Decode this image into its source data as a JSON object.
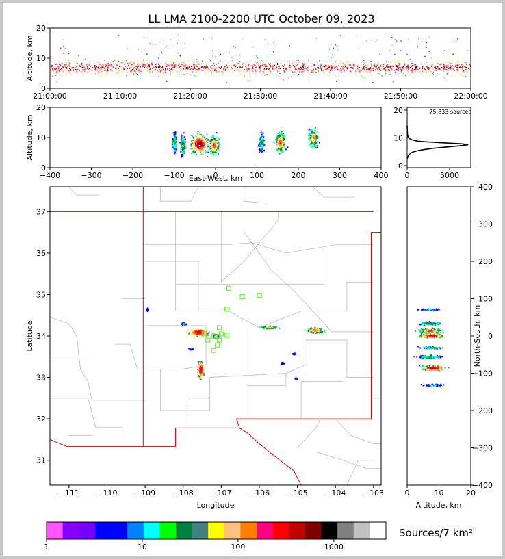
{
  "title": "LL LMA 2100-2200 UTC October 09, 2023",
  "colors": {
    "border": "#c0c0c0",
    "state_line": "#d40000",
    "county_line": "#bdbdbd",
    "station": "#66ee33"
  },
  "chart_data": [
    {
      "id": "time-height",
      "type": "scatter",
      "ylabel": "Altitude, km",
      "xlim": [
        "21:00:00",
        "22:00:00"
      ],
      "ylim": [
        0,
        20
      ],
      "x_ticks": [
        "21:00:00",
        "21:10:00",
        "21:20:00",
        "21:30:00",
        "21:40:00",
        "21:50:00",
        "22:00:00"
      ],
      "y_ticks": [
        "0",
        "10",
        "20"
      ],
      "source_density_band_km": [
        4,
        10
      ]
    },
    {
      "id": "ew-altitude",
      "type": "scatter",
      "xlabel": "East-West, km",
      "ylabel": "Altitude, km",
      "xlim": [
        -400,
        400
      ],
      "ylim": [
        0,
        20
      ],
      "x_ticks": [
        "−400",
        "−300",
        "−200",
        "−100",
        "0",
        "100",
        "200",
        "300",
        "400"
      ],
      "y_ticks": [
        "0",
        "10",
        "20"
      ],
      "clusters": [
        {
          "x": -100,
          "alt": 8.5,
          "width": 10,
          "intensity": 0.5
        },
        {
          "x": -80,
          "alt": 7.5,
          "width": 12,
          "intensity": 0.6
        },
        {
          "x": -40,
          "alt": 8,
          "width": 40,
          "intensity": 1.0
        },
        {
          "x": -5,
          "alt": 7.5,
          "width": 25,
          "intensity": 0.8
        },
        {
          "x": 110,
          "alt": 8.5,
          "width": 12,
          "intensity": 0.5
        },
        {
          "x": 155,
          "alt": 8.5,
          "width": 25,
          "intensity": 0.8
        },
        {
          "x": 235,
          "alt": 10,
          "width": 22,
          "intensity": 0.75
        }
      ]
    },
    {
      "id": "altitude-histogram",
      "type": "line",
      "annotation": "75,833 sources",
      "xlim": [
        0,
        7500
      ],
      "ylim": [
        0,
        20
      ],
      "x_ticks": [
        "0",
        "5000"
      ],
      "y_ticks": [
        "0",
        "10",
        "20"
      ],
      "x": [
        0,
        150,
        400,
        700,
        1200,
        2000,
        3000,
        4500,
        6000,
        7200,
        6500,
        4500,
        2500,
        1200,
        600,
        300,
        150,
        80,
        50,
        30,
        20,
        10,
        0
      ],
      "y": [
        3,
        4,
        4.8,
        5.2,
        5.6,
        6,
        6.4,
        6.8,
        7.2,
        7.6,
        7.9,
        8.2,
        8.5,
        8.8,
        9.2,
        9.6,
        10,
        10.5,
        11,
        11.5,
        12,
        13,
        14
      ]
    },
    {
      "id": "plan-view",
      "type": "scatter",
      "xlabel": "Longitude",
      "ylabel": "Latitude",
      "xlim": [
        -111.5,
        -102.8
      ],
      "ylim": [
        30.4,
        37.6
      ],
      "x_ticks": [
        "−111",
        "−110",
        "−109",
        "−108",
        "−107",
        "−106",
        "−105",
        "−104",
        "−103"
      ],
      "y_ticks": [
        "31",
        "32",
        "33",
        "34",
        "35",
        "36",
        "37"
      ],
      "stations": [
        {
          "lon": -106.8,
          "lat": 35.15
        },
        {
          "lon": -106.45,
          "lat": 34.95
        },
        {
          "lon": -106.0,
          "lat": 34.98
        },
        {
          "lon": -106.85,
          "lat": 34.65
        },
        {
          "lon": -107.05,
          "lat": 34.2
        },
        {
          "lon": -107.0,
          "lat": 34.05
        },
        {
          "lon": -107.2,
          "lat": 34.0
        },
        {
          "lon": -107.45,
          "lat": 34.05
        },
        {
          "lon": -107.35,
          "lat": 33.9
        },
        {
          "lon": -107.05,
          "lat": 33.9
        },
        {
          "lon": -107.1,
          "lat": 33.78
        },
        {
          "lon": -107.2,
          "lat": 33.65
        },
        {
          "lon": -106.85,
          "lat": 34.02
        }
      ],
      "clusters": [
        {
          "lon": -108.95,
          "lat": 34.65,
          "rx": 0.04,
          "ry": 0.06,
          "intensity": 0.3
        },
        {
          "lon": -108.0,
          "lat": 34.3,
          "rx": 0.08,
          "ry": 0.05,
          "intensity": 0.4
        },
        {
          "lon": -107.6,
          "lat": 34.1,
          "rx": 0.35,
          "ry": 0.12,
          "intensity": 0.9
        },
        {
          "lon": -107.15,
          "lat": 34.0,
          "rx": 0.12,
          "ry": 0.08,
          "intensity": 0.7
        },
        {
          "lon": -107.8,
          "lat": 33.7,
          "rx": 0.08,
          "ry": 0.04,
          "intensity": 0.35
        },
        {
          "lon": -107.55,
          "lat": 33.2,
          "rx": 0.12,
          "ry": 0.3,
          "intensity": 0.85
        },
        {
          "lon": -105.75,
          "lat": 34.22,
          "rx": 0.3,
          "ry": 0.05,
          "intensity": 0.7
        },
        {
          "lon": -104.55,
          "lat": 34.15,
          "rx": 0.3,
          "ry": 0.1,
          "intensity": 0.75
        },
        {
          "lon": -105.1,
          "lat": 33.58,
          "rx": 0.06,
          "ry": 0.03,
          "intensity": 0.3
        },
        {
          "lon": -105.4,
          "lat": 33.35,
          "rx": 0.06,
          "ry": 0.03,
          "intensity": 0.3
        },
        {
          "lon": -105.05,
          "lat": 32.98,
          "rx": 0.04,
          "ry": 0.03,
          "intensity": 0.3
        }
      ]
    },
    {
      "id": "ns-altitude",
      "type": "scatter",
      "xlabel": "Altitude, km",
      "ylabel": "North-South, km",
      "xlim": [
        0,
        20
      ],
      "ylim": [
        -400,
        400
      ],
      "x_ticks": [
        "0",
        "10",
        "20"
      ],
      "y_ticks": [
        "−400",
        "−300",
        "−200",
        "−100",
        "0",
        "100",
        "200",
        "300",
        "400"
      ],
      "clusters": [
        {
          "ns": 72,
          "alt": 7,
          "width": 4,
          "intensity": 0.4
        },
        {
          "ns": 35,
          "alt": 7,
          "width": 8,
          "intensity": 0.6
        },
        {
          "ns": 15,
          "alt": 7,
          "width": 12,
          "intensity": 0.8
        },
        {
          "ns": 2,
          "alt": 7.5,
          "width": 10,
          "intensity": 0.95
        },
        {
          "ns": -30,
          "alt": 7.5,
          "width": 6,
          "intensity": 0.5
        },
        {
          "ns": -55,
          "alt": 7,
          "width": 8,
          "intensity": 0.5
        },
        {
          "ns": -85,
          "alt": 8,
          "width": 12,
          "intensity": 0.95
        },
        {
          "ns": -130,
          "alt": 8,
          "width": 5,
          "intensity": 0.4
        }
      ]
    }
  ],
  "colorbar": {
    "label": "Sources/7 km²",
    "tick_labels": [
      "1",
      "10",
      "100",
      "1000"
    ],
    "tick_values": [
      1,
      10,
      100,
      1000
    ],
    "range": [
      1,
      3500
    ],
    "colors": [
      "#ff55ff",
      "#8800ff",
      "#7700ff",
      "#0000ff",
      "#0000ff",
      "#0080ff",
      "#00ffff",
      "#00ff00",
      "#008040",
      "#408080",
      "#ffff00",
      "#ffc080",
      "#ff8000",
      "#ff0080",
      "#ff0000",
      "#c00000",
      "#800000",
      "#000000",
      "#808080",
      "#c0c0c0",
      "#ffffff"
    ]
  }
}
